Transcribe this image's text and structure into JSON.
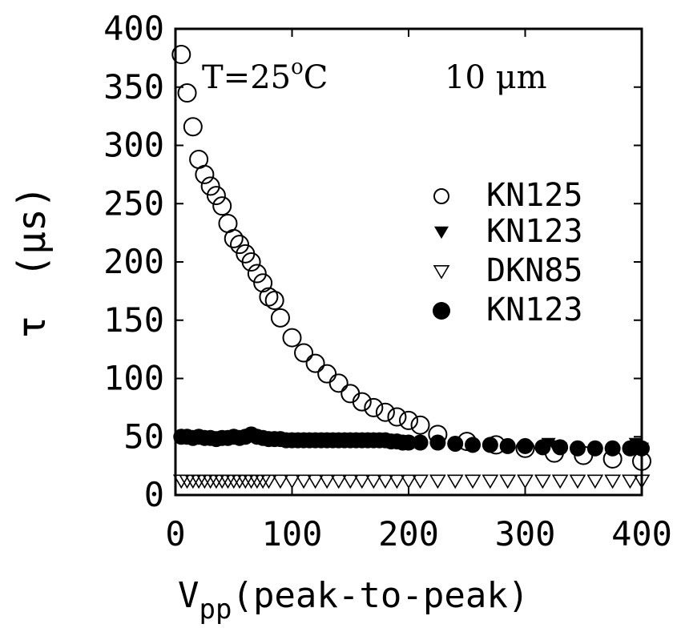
{
  "chart_data": {
    "type": "scatter",
    "title": "",
    "xlabel": "V",
    "xlabel_sub": "pp",
    "xlabel_rest": "(peak-to-peak)",
    "ylabel_symbol": "τ",
    "ylabel_unit": "(μs)",
    "xlim": [
      0,
      400
    ],
    "ylim": [
      0,
      400
    ],
    "xticks": [
      "0",
      "100",
      "200",
      "300",
      "400"
    ],
    "yticks": [
      "0",
      "50",
      "100",
      "150",
      "200",
      "250",
      "300",
      "350",
      "400"
    ],
    "grid": false,
    "legend_position": "right",
    "annotations": {
      "temperature_prefix": "T=25",
      "temperature_deg": "o",
      "temperature_unit": "C",
      "thickness": "10 μm"
    },
    "series": [
      {
        "name": "KN125",
        "marker": "open-circle",
        "x": [
          5,
          10,
          15,
          20,
          25,
          30,
          35,
          40,
          45,
          50,
          55,
          60,
          65,
          70,
          75,
          80,
          85,
          90,
          100,
          110,
          120,
          130,
          140,
          150,
          160,
          170,
          180,
          190,
          200,
          210,
          225,
          250,
          275,
          300,
          325,
          350,
          375,
          400
        ],
        "y": [
          378,
          345,
          316,
          288,
          275,
          265,
          257,
          248,
          233,
          220,
          215,
          207,
          200,
          190,
          182,
          170,
          167,
          152,
          135,
          122,
          113,
          104,
          96,
          87,
          80,
          75,
          71,
          67,
          64,
          60,
          52,
          46,
          43,
          40,
          36,
          34,
          31,
          29
        ]
      },
      {
        "name": "KN123",
        "marker": "filled-triangle-down",
        "x": [
          320,
          325,
          330,
          395,
          400
        ],
        "y": [
          44,
          42,
          40,
          44,
          40
        ]
      },
      {
        "name": "DKN85",
        "marker": "open-triangle-down",
        "x": [
          5,
          10,
          15,
          20,
          25,
          30,
          35,
          40,
          45,
          50,
          55,
          60,
          65,
          70,
          75,
          80,
          90,
          100,
          110,
          120,
          130,
          140,
          150,
          160,
          170,
          180,
          190,
          200,
          210,
          225,
          240,
          255,
          270,
          285,
          300,
          315,
          330,
          345,
          360,
          375,
          390,
          400
        ],
        "y": [
          12,
          12,
          12,
          12,
          12,
          12,
          12,
          12,
          12,
          12,
          12,
          12,
          12,
          12,
          12,
          12,
          12,
          12,
          12,
          12,
          12,
          12,
          12,
          12,
          12,
          12,
          12,
          12,
          12,
          12,
          12,
          12,
          12,
          12,
          12,
          12,
          12,
          12,
          12,
          12,
          12,
          12
        ]
      },
      {
        "name": "KN123",
        "marker": "filled-circle",
        "x": [
          5,
          10,
          15,
          20,
          25,
          30,
          35,
          40,
          45,
          50,
          55,
          60,
          65,
          70,
          75,
          80,
          85,
          90,
          95,
          100,
          105,
          110,
          115,
          120,
          125,
          130,
          135,
          140,
          145,
          150,
          155,
          160,
          165,
          170,
          175,
          180,
          185,
          190,
          195,
          200,
          210,
          225,
          240,
          255,
          270,
          285,
          300,
          315,
          330,
          345,
          360,
          375,
          390,
          400
        ],
        "y": [
          50,
          50,
          49,
          50,
          49,
          49,
          48,
          49,
          49,
          50,
          49,
          50,
          52,
          50,
          49,
          48,
          48,
          48,
          47,
          47,
          47,
          47,
          47,
          47,
          47,
          47,
          47,
          47,
          47,
          47,
          47,
          47,
          47,
          47,
          47,
          47,
          46,
          46,
          45,
          45,
          45,
          45,
          44,
          43,
          43,
          42,
          42,
          41,
          41,
          40,
          40,
          40,
          40,
          40
        ]
      }
    ]
  }
}
